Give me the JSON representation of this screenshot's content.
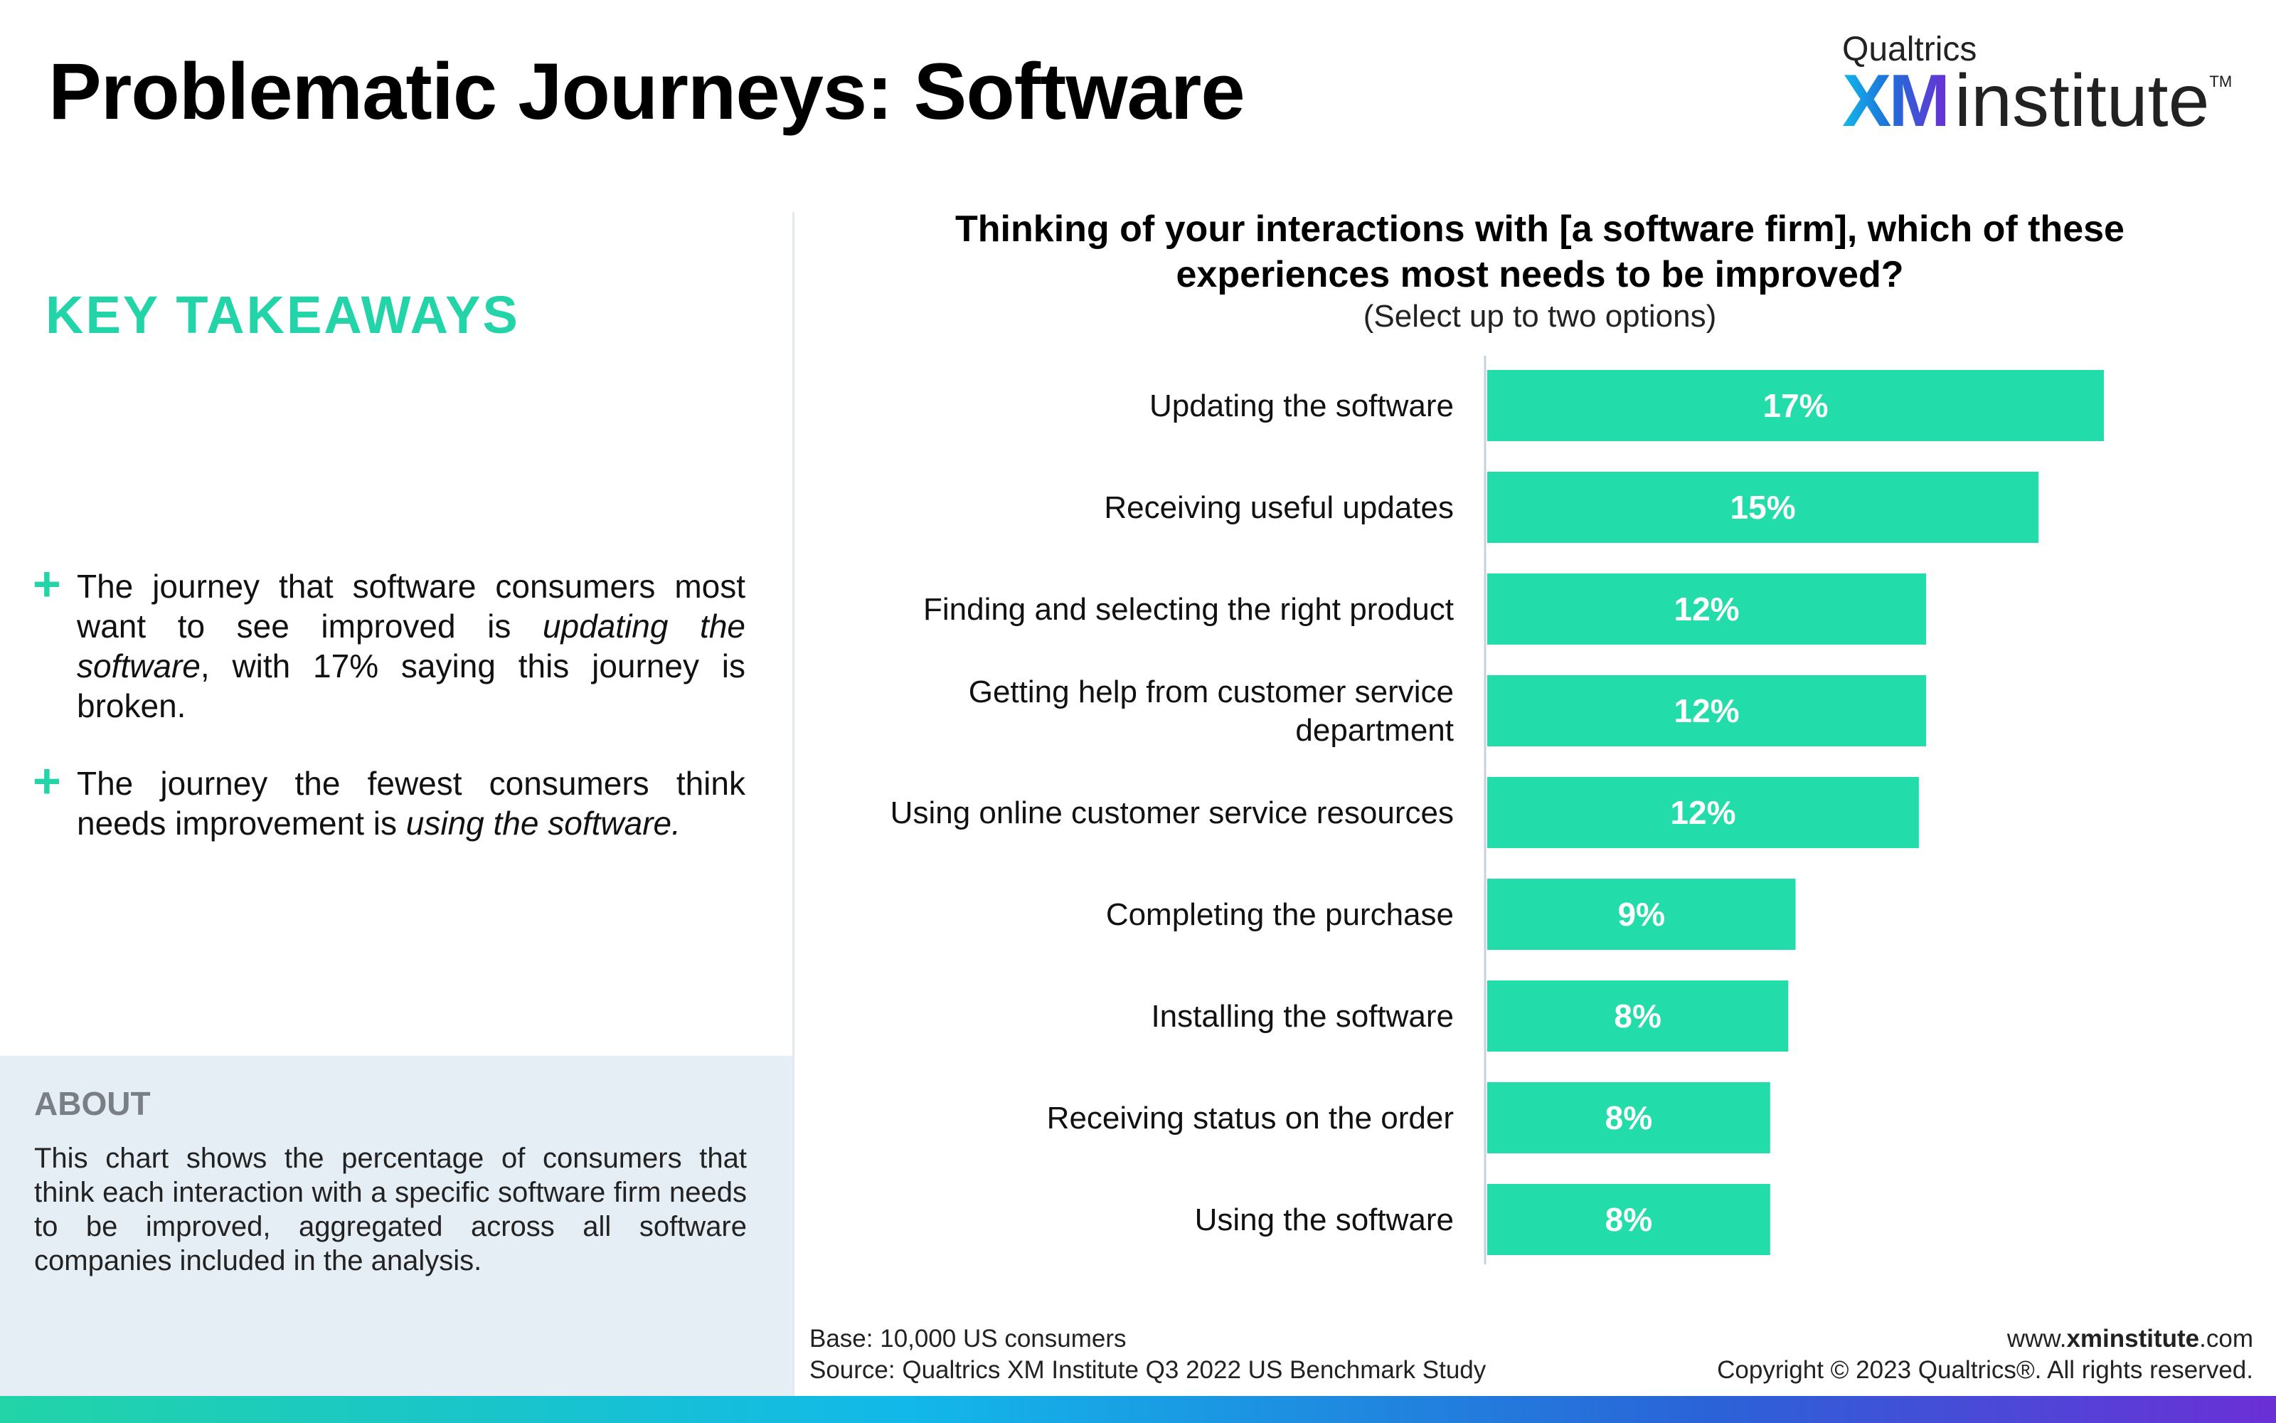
{
  "header": {
    "title": "Problematic Journeys: Software",
    "logo_small": "Qualtrics",
    "logo_xm": "XM",
    "logo_institute": "institute",
    "logo_tm": "TM"
  },
  "takeaways": {
    "heading": "KEY TAKEAWAYS",
    "plus_icon": "+",
    "item1": {
      "part1": "The journey that software consumers most want to see improved is ",
      "italic": "updating the software",
      "part2": ", with 17% saying this journey is broken."
    },
    "item2": {
      "part1": "The journey the fewest consumers think needs improvement is ",
      "italic": "using the software."
    }
  },
  "about": {
    "title": "ABOUT",
    "text": "This chart shows the percentage of consumers that think each interaction with a specific software firm needs to be improved, aggregated across all software companies included in the analysis."
  },
  "chart_data": {
    "type": "bar",
    "orientation": "horizontal",
    "title": "Thinking of your interactions with [a software firm], which of these experiences most needs to be improved?",
    "subtitle": "(Select up to two options)",
    "categories": [
      "Updating the software",
      "Receiving useful updates",
      "Finding and selecting the right product",
      "Getting help from customer service department",
      "Using online customer service resources",
      "Completing the purchase",
      "Installing the software",
      "Receiving status on the order",
      "Using the software"
    ],
    "category_lines": [
      [
        "Updating the software"
      ],
      [
        "Receiving useful updates"
      ],
      [
        "Finding and selecting the right product"
      ],
      [
        "Getting help from customer service",
        "department"
      ],
      [
        "Using online customer service resources"
      ],
      [
        "Completing the purchase"
      ],
      [
        "Installing the software"
      ],
      [
        "Receiving status on the order"
      ],
      [
        "Using the software"
      ]
    ],
    "values": [
      17.0,
      15.2,
      12.1,
      12.1,
      11.9,
      8.5,
      8.3,
      7.8,
      7.8
    ],
    "value_labels": [
      "17%",
      "15%",
      "12%",
      "12%",
      "12%",
      "9%",
      "8%",
      "8%",
      "8%"
    ],
    "xlim": [
      0,
      20
    ],
    "grid": false,
    "legend": "none",
    "bar_color": "#22dcaa",
    "label_color": "#ffffff"
  },
  "footer": {
    "base": "Base: 10,000 US consumers",
    "source": "Source: Qualtrics XM Institute Q3 2022 US Benchmark Study",
    "url_prefix": "www.",
    "url_bold": "xminstitute",
    "url_suffix": ".com",
    "copyright": "Copyright © 2023 Qualtrics®. All rights reserved."
  },
  "colors": {
    "accent": "#22d4a8",
    "about_bg": "#e5edf5"
  }
}
